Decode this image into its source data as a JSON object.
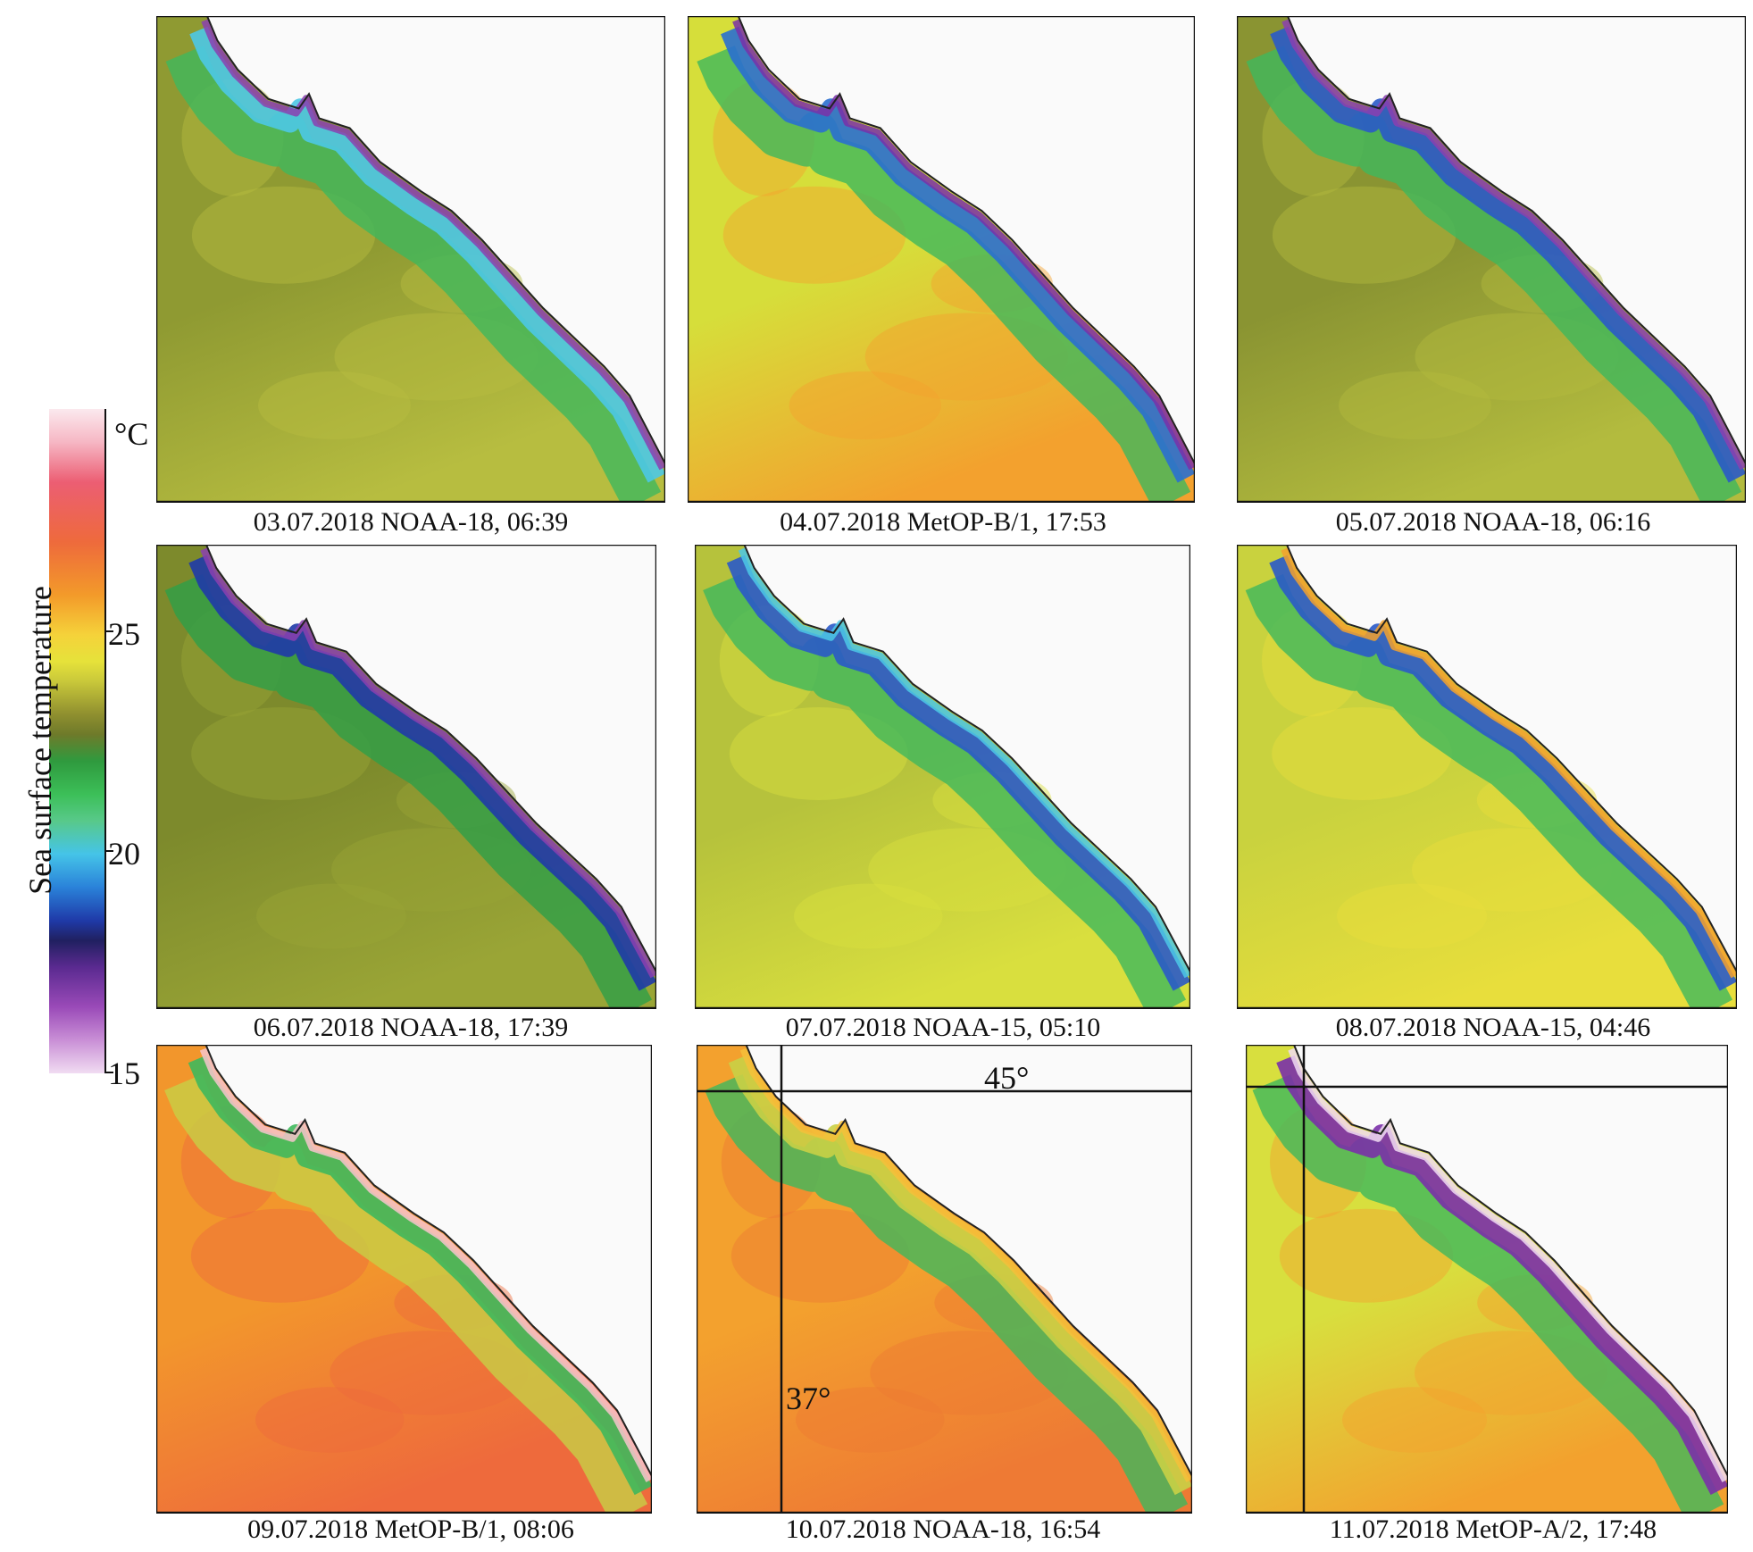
{
  "colorbar": {
    "title": "Sea surface temperature",
    "unit": "°C",
    "ticks": [
      {
        "value": 15,
        "label": "15"
      },
      {
        "value": 20,
        "label": "20"
      },
      {
        "value": 25,
        "label": "25"
      }
    ],
    "range": [
      15,
      30
    ],
    "colors": [
      "#f1dcf2",
      "#9a4ab8",
      "#1f3aa8",
      "#45c4e8",
      "#3cbf58",
      "#6e7a2a",
      "#e6e23a",
      "#f39a2a",
      "#ec5e73",
      "#fbe9ee"
    ]
  },
  "gridlines": {
    "latitude_label": "45°",
    "longitude_label": "37°"
  },
  "panels": [
    {
      "caption": "03.07.2018 NOAA-18, 06:39"
    },
    {
      "caption": "04.07.2018 MetOP-B/1, 17:53"
    },
    {
      "caption": "05.07.2018 NOAA-18, 06:16"
    },
    {
      "caption": "06.07.2018 NOAA-18, 17:39"
    },
    {
      "caption": "07.07.2018 NOAA-15, 05:10"
    },
    {
      "caption": "08.07.2018 NOAA-15, 04:46"
    },
    {
      "caption": "09.07.2018 MetOP-B/1, 08:06"
    },
    {
      "caption": "10.07.2018 NOAA-18, 16:54"
    },
    {
      "caption": "11.07.2018 MetOP-A/2, 17:48"
    }
  ]
}
